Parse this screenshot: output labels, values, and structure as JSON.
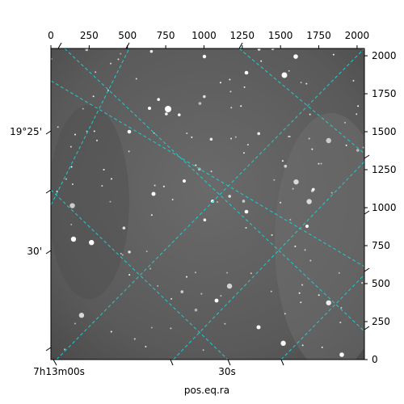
{
  "chart_data": {
    "type": "image",
    "xlabel": "pos.eq.ra",
    "ylabel": "",
    "pixel_axes": {
      "x_ticks": [
        "0",
        "250",
        "500",
        "750",
        "1000",
        "1250",
        "1500",
        "1750",
        "2000"
      ],
      "x_tick_values": [
        0,
        250,
        500,
        750,
        1000,
        1250,
        1500,
        1750,
        2000
      ],
      "xlim": [
        0,
        2048
      ],
      "y_ticks": [
        "0",
        "250",
        "500",
        "750",
        "1000",
        "1250",
        "1500",
        "1750",
        "2000"
      ],
      "y_tick_values": [
        0,
        250,
        500,
        750,
        1000,
        1250,
        1500,
        1750,
        2000
      ],
      "ylim": [
        0,
        2048
      ]
    },
    "world_axes": {
      "ra_labels": [
        "7h13m00s",
        "30s"
      ],
      "dec_labels": [
        "19°25'",
        "30'"
      ]
    },
    "grid": true,
    "grid_color": "#22cccc",
    "image_tone": "#555555"
  }
}
